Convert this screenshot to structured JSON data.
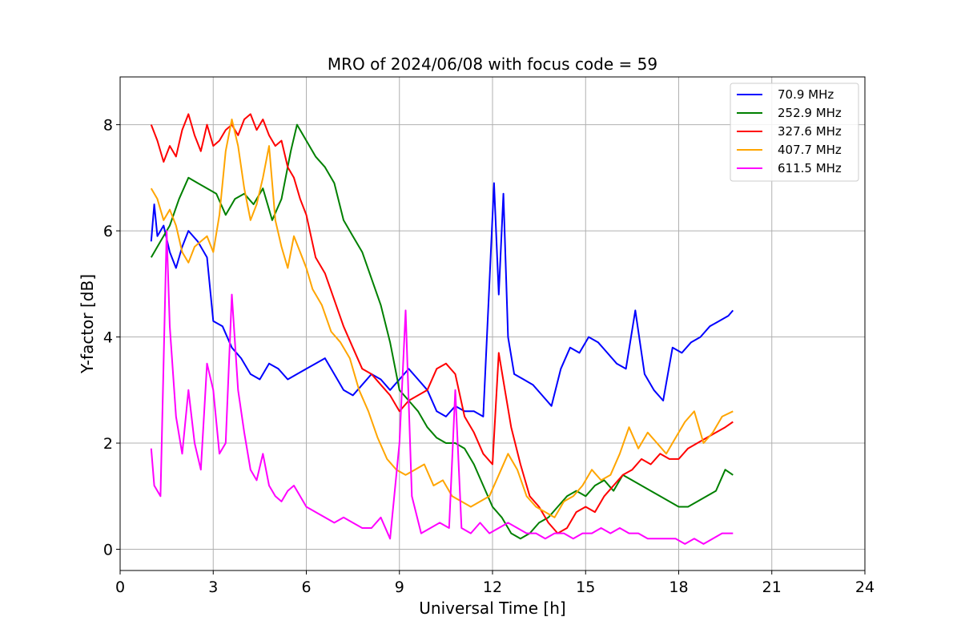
{
  "chart_data": {
    "type": "line",
    "title": "MRO of 2024/06/08 with focus code = 59",
    "xlabel": "Universal Time [h]",
    "ylabel": "Y-factor [dB]",
    "xlim": [
      0,
      24
    ],
    "ylim": [
      -0.4,
      8.9
    ],
    "xticks": [
      0,
      3,
      6,
      9,
      12,
      15,
      18,
      21,
      24
    ],
    "yticks": [
      0,
      2,
      4,
      6,
      8
    ],
    "grid": true,
    "legend_position": "top-right",
    "series": [
      {
        "name": "70.9 MHz",
        "color": "#0000ff",
        "x": [
          1.0,
          1.1,
          1.2,
          1.4,
          1.6,
          1.8,
          2.0,
          2.2,
          2.5,
          2.8,
          3.0,
          3.3,
          3.6,
          3.9,
          4.2,
          4.5,
          4.8,
          5.1,
          5.4,
          5.7,
          6.0,
          6.3,
          6.6,
          6.9,
          7.2,
          7.5,
          7.8,
          8.1,
          8.4,
          8.7,
          9.0,
          9.3,
          9.6,
          9.9,
          10.2,
          10.5,
          10.8,
          11.1,
          11.4,
          11.7,
          11.9,
          12.05,
          12.2,
          12.35,
          12.5,
          12.7,
          13.0,
          13.3,
          13.6,
          13.9,
          14.2,
          14.5,
          14.8,
          15.1,
          15.4,
          15.7,
          16.0,
          16.3,
          16.6,
          16.9,
          17.2,
          17.5,
          17.8,
          18.1,
          18.4,
          18.7,
          19.0,
          19.3,
          19.6,
          19.75
        ],
        "values": [
          5.8,
          6.5,
          5.9,
          6.1,
          5.6,
          5.3,
          5.7,
          6.0,
          5.8,
          5.5,
          4.3,
          4.2,
          3.8,
          3.6,
          3.3,
          3.2,
          3.5,
          3.4,
          3.2,
          3.3,
          3.4,
          3.5,
          3.6,
          3.3,
          3.0,
          2.9,
          3.1,
          3.3,
          3.2,
          3.0,
          3.2,
          3.4,
          3.2,
          3.0,
          2.6,
          2.5,
          2.7,
          2.6,
          2.6,
          2.5,
          5.0,
          6.9,
          4.8,
          6.7,
          4.0,
          3.3,
          3.2,
          3.1,
          2.9,
          2.7,
          3.4,
          3.8,
          3.7,
          4.0,
          3.9,
          3.7,
          3.5,
          3.4,
          4.5,
          3.3,
          3.0,
          2.8,
          3.8,
          3.7,
          3.9,
          4.0,
          4.2,
          4.3,
          4.4,
          4.5
        ]
      },
      {
        "name": "252.9 MHz",
        "color": "#008000",
        "x": [
          1.0,
          1.3,
          1.6,
          1.9,
          2.2,
          2.5,
          2.8,
          3.1,
          3.4,
          3.7,
          4.0,
          4.3,
          4.6,
          4.9,
          5.2,
          5.5,
          5.7,
          6.0,
          6.3,
          6.6,
          6.9,
          7.2,
          7.5,
          7.8,
          8.1,
          8.4,
          8.7,
          9.0,
          9.3,
          9.6,
          9.9,
          10.2,
          10.5,
          10.8,
          11.1,
          11.4,
          11.7,
          12.0,
          12.3,
          12.6,
          12.9,
          13.2,
          13.5,
          13.8,
          14.1,
          14.4,
          14.7,
          15.0,
          15.3,
          15.6,
          15.9,
          16.2,
          16.5,
          16.8,
          17.1,
          17.4,
          17.7,
          18.0,
          18.3,
          18.6,
          18.9,
          19.2,
          19.5,
          19.75
        ],
        "values": [
          5.5,
          5.8,
          6.1,
          6.6,
          7.0,
          6.9,
          6.8,
          6.7,
          6.3,
          6.6,
          6.7,
          6.5,
          6.8,
          6.2,
          6.6,
          7.5,
          8.0,
          7.7,
          7.4,
          7.2,
          6.9,
          6.2,
          5.9,
          5.6,
          5.1,
          4.6,
          3.9,
          3.0,
          2.8,
          2.6,
          2.3,
          2.1,
          2.0,
          2.0,
          1.9,
          1.6,
          1.2,
          0.8,
          0.6,
          0.3,
          0.2,
          0.3,
          0.5,
          0.6,
          0.8,
          1.0,
          1.1,
          1.0,
          1.2,
          1.3,
          1.1,
          1.4,
          1.3,
          1.2,
          1.1,
          1.0,
          0.9,
          0.8,
          0.8,
          0.9,
          1.0,
          1.1,
          1.5,
          1.4
        ]
      },
      {
        "name": "327.6 MHz",
        "color": "#ff0000",
        "x": [
          1.0,
          1.2,
          1.4,
          1.6,
          1.8,
          2.0,
          2.2,
          2.4,
          2.6,
          2.8,
          3.0,
          3.2,
          3.4,
          3.6,
          3.8,
          4.0,
          4.2,
          4.4,
          4.6,
          4.8,
          5.0,
          5.2,
          5.4,
          5.6,
          5.8,
          6.0,
          6.3,
          6.6,
          6.9,
          7.2,
          7.5,
          7.8,
          8.1,
          8.4,
          8.7,
          9.0,
          9.3,
          9.6,
          9.9,
          10.2,
          10.5,
          10.8,
          11.1,
          11.4,
          11.7,
          12.0,
          12.2,
          12.4,
          12.6,
          12.9,
          13.2,
          13.5,
          13.8,
          14.1,
          14.4,
          14.7,
          15.0,
          15.3,
          15.6,
          15.9,
          16.2,
          16.5,
          16.8,
          17.1,
          17.4,
          17.7,
          18.0,
          18.3,
          18.6,
          18.9,
          19.2,
          19.5,
          19.75
        ],
        "values": [
          8.0,
          7.7,
          7.3,
          7.6,
          7.4,
          7.9,
          8.2,
          7.8,
          7.5,
          8.0,
          7.6,
          7.7,
          7.9,
          8.0,
          7.8,
          8.1,
          8.2,
          7.9,
          8.1,
          7.8,
          7.6,
          7.7,
          7.2,
          7.0,
          6.6,
          6.3,
          5.5,
          5.2,
          4.7,
          4.2,
          3.8,
          3.4,
          3.3,
          3.1,
          2.9,
          2.6,
          2.8,
          2.9,
          3.0,
          3.4,
          3.5,
          3.3,
          2.5,
          2.2,
          1.8,
          1.6,
          3.7,
          3.0,
          2.3,
          1.6,
          1.0,
          0.8,
          0.5,
          0.3,
          0.4,
          0.7,
          0.8,
          0.7,
          1.0,
          1.2,
          1.4,
          1.5,
          1.7,
          1.6,
          1.8,
          1.7,
          1.7,
          1.9,
          2.0,
          2.1,
          2.2,
          2.3,
          2.4
        ]
      },
      {
        "name": "407.7 MHz",
        "color": "#ffa500",
        "x": [
          1.0,
          1.2,
          1.4,
          1.6,
          1.8,
          2.0,
          2.2,
          2.4,
          2.6,
          2.8,
          3.0,
          3.2,
          3.4,
          3.6,
          3.8,
          4.0,
          4.2,
          4.4,
          4.6,
          4.8,
          5.0,
          5.2,
          5.4,
          5.6,
          5.8,
          6.0,
          6.2,
          6.5,
          6.8,
          7.1,
          7.4,
          7.7,
          8.0,
          8.3,
          8.6,
          8.9,
          9.2,
          9.5,
          9.8,
          10.1,
          10.4,
          10.7,
          11.0,
          11.3,
          11.6,
          11.9,
          12.2,
          12.5,
          12.8,
          13.1,
          13.4,
          13.7,
          14.0,
          14.3,
          14.6,
          14.9,
          15.2,
          15.5,
          15.8,
          16.1,
          16.4,
          16.7,
          17.0,
          17.3,
          17.6,
          17.9,
          18.2,
          18.5,
          18.8,
          19.1,
          19.4,
          19.75
        ],
        "values": [
          6.8,
          6.6,
          6.2,
          6.4,
          6.1,
          5.6,
          5.4,
          5.7,
          5.8,
          5.9,
          5.6,
          6.3,
          7.5,
          8.1,
          7.6,
          6.8,
          6.2,
          6.5,
          7.0,
          7.6,
          6.2,
          5.7,
          5.3,
          5.9,
          5.6,
          5.3,
          4.9,
          4.6,
          4.1,
          3.9,
          3.6,
          3.0,
          2.6,
          2.1,
          1.7,
          1.5,
          1.4,
          1.5,
          1.6,
          1.2,
          1.3,
          1.0,
          0.9,
          0.8,
          0.9,
          1.0,
          1.4,
          1.8,
          1.5,
          1.0,
          0.8,
          0.7,
          0.6,
          0.9,
          1.0,
          1.2,
          1.5,
          1.3,
          1.4,
          1.8,
          2.3,
          1.9,
          2.2,
          2.0,
          1.8,
          2.1,
          2.4,
          2.6,
          2.0,
          2.2,
          2.5,
          2.6
        ]
      },
      {
        "name": "611.5 MHz",
        "color": "#ff00ff",
        "x": [
          1.0,
          1.1,
          1.3,
          1.5,
          1.6,
          1.8,
          2.0,
          2.2,
          2.4,
          2.6,
          2.8,
          3.0,
          3.2,
          3.4,
          3.6,
          3.8,
          4.0,
          4.2,
          4.4,
          4.6,
          4.8,
          5.0,
          5.2,
          5.4,
          5.6,
          5.8,
          6.0,
          6.3,
          6.6,
          6.9,
          7.2,
          7.5,
          7.8,
          8.1,
          8.4,
          8.7,
          9.0,
          9.2,
          9.4,
          9.7,
          10.0,
          10.3,
          10.6,
          10.8,
          11.0,
          11.3,
          11.6,
          11.9,
          12.2,
          12.5,
          12.8,
          13.1,
          13.4,
          13.7,
          14.0,
          14.3,
          14.6,
          14.9,
          15.2,
          15.5,
          15.8,
          16.1,
          16.4,
          16.7,
          17.0,
          17.3,
          17.6,
          17.9,
          18.2,
          18.5,
          18.8,
          19.1,
          19.4,
          19.75
        ],
        "values": [
          1.9,
          1.2,
          1.0,
          6.0,
          4.2,
          2.5,
          1.8,
          3.0,
          2.0,
          1.5,
          3.5,
          3.0,
          1.8,
          2.0,
          4.8,
          3.0,
          2.2,
          1.5,
          1.3,
          1.8,
          1.2,
          1.0,
          0.9,
          1.1,
          1.2,
          1.0,
          0.8,
          0.7,
          0.6,
          0.5,
          0.6,
          0.5,
          0.4,
          0.4,
          0.6,
          0.2,
          2.0,
          4.5,
          1.0,
          0.3,
          0.4,
          0.5,
          0.4,
          3.0,
          0.4,
          0.3,
          0.5,
          0.3,
          0.4,
          0.5,
          0.4,
          0.3,
          0.3,
          0.2,
          0.3,
          0.3,
          0.2,
          0.3,
          0.3,
          0.4,
          0.3,
          0.4,
          0.3,
          0.3,
          0.2,
          0.2,
          0.2,
          0.2,
          0.1,
          0.2,
          0.1,
          0.2,
          0.3,
          0.3
        ]
      }
    ]
  }
}
